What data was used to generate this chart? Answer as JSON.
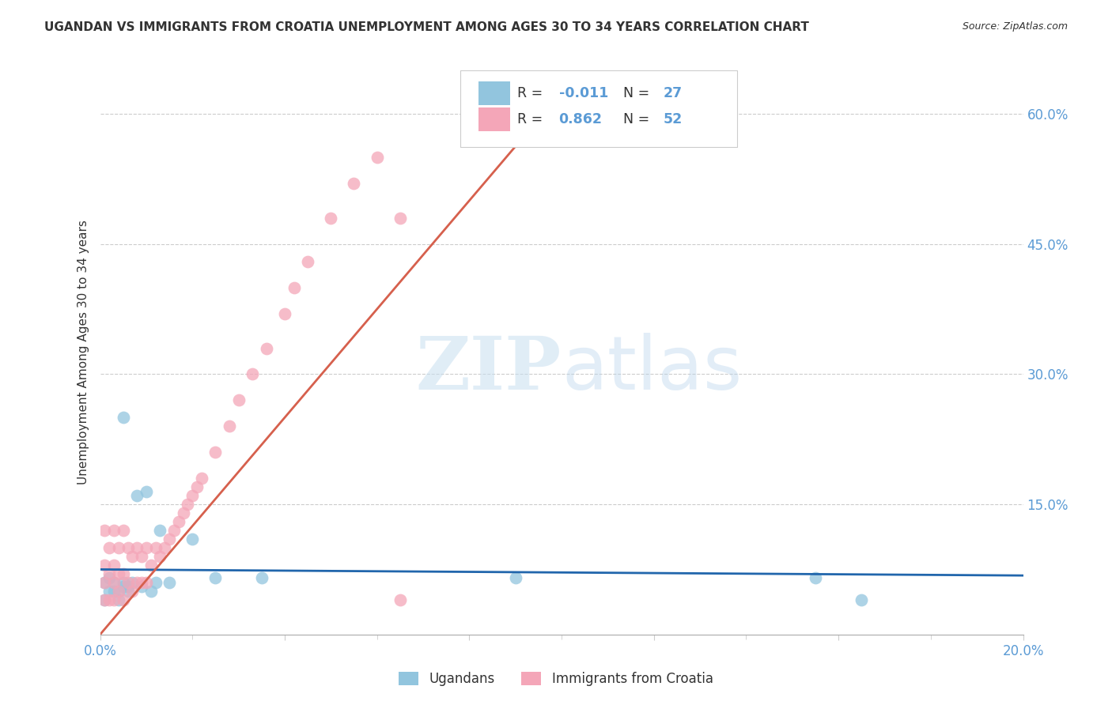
{
  "title": "UGANDAN VS IMMIGRANTS FROM CROATIA UNEMPLOYMENT AMONG AGES 30 TO 34 YEARS CORRELATION CHART",
  "source": "Source: ZipAtlas.com",
  "ylabel_label": "Unemployment Among Ages 30 to 34 years",
  "xlim": [
    0.0,
    0.2
  ],
  "ylim": [
    0.0,
    0.65
  ],
  "ugandan_R": -0.011,
  "ugandan_N": 27,
  "croatia_R": 0.862,
  "croatia_N": 52,
  "ugandan_color": "#92c5de",
  "croatia_color": "#f4a6b8",
  "ugandan_line_color": "#2166ac",
  "croatia_line_color": "#d6604d",
  "legend_label_ugandan": "Ugandans",
  "legend_label_croatia": "Immigrants from Croatia",
  "watermark_zip": "ZIP",
  "watermark_atlas": "atlas",
  "ugandan_points_x": [
    0.001,
    0.001,
    0.002,
    0.002,
    0.003,
    0.003,
    0.004,
    0.004,
    0.005,
    0.005,
    0.006,
    0.006,
    0.007,
    0.008,
    0.009,
    0.01,
    0.011,
    0.012,
    0.013,
    0.015,
    0.02,
    0.025,
    0.035,
    0.09,
    0.155,
    0.165,
    0.005
  ],
  "ugandan_points_y": [
    0.04,
    0.06,
    0.05,
    0.065,
    0.05,
    0.06,
    0.05,
    0.04,
    0.055,
    0.06,
    0.055,
    0.05,
    0.06,
    0.16,
    0.055,
    0.165,
    0.05,
    0.06,
    0.12,
    0.06,
    0.11,
    0.065,
    0.065,
    0.065,
    0.065,
    0.04,
    0.25
  ],
  "croatia_points_x": [
    0.001,
    0.001,
    0.001,
    0.001,
    0.002,
    0.002,
    0.002,
    0.003,
    0.003,
    0.003,
    0.003,
    0.004,
    0.004,
    0.004,
    0.005,
    0.005,
    0.005,
    0.006,
    0.006,
    0.007,
    0.007,
    0.008,
    0.008,
    0.009,
    0.009,
    0.01,
    0.01,
    0.011,
    0.012,
    0.013,
    0.014,
    0.015,
    0.016,
    0.017,
    0.018,
    0.019,
    0.02,
    0.021,
    0.022,
    0.025,
    0.028,
    0.03,
    0.033,
    0.036,
    0.04,
    0.042,
    0.045,
    0.05,
    0.055,
    0.06,
    0.065,
    0.065
  ],
  "croatia_points_y": [
    0.04,
    0.06,
    0.08,
    0.12,
    0.04,
    0.07,
    0.1,
    0.04,
    0.06,
    0.08,
    0.12,
    0.05,
    0.07,
    0.1,
    0.04,
    0.07,
    0.12,
    0.06,
    0.1,
    0.05,
    0.09,
    0.06,
    0.1,
    0.06,
    0.09,
    0.06,
    0.1,
    0.08,
    0.1,
    0.09,
    0.1,
    0.11,
    0.12,
    0.13,
    0.14,
    0.15,
    0.16,
    0.17,
    0.18,
    0.21,
    0.24,
    0.27,
    0.3,
    0.33,
    0.37,
    0.4,
    0.43,
    0.48,
    0.52,
    0.55,
    0.04,
    0.48
  ],
  "title_color": "#333333",
  "axis_color": "#5b9bd5",
  "grid_color": "#cccccc",
  "bg_color": "#ffffff",
  "ugandan_line_x": [
    0.0,
    0.2
  ],
  "ugandan_line_y": [
    0.075,
    0.068
  ],
  "croatia_line_x": [
    0.0,
    0.104
  ],
  "croatia_line_y": [
    0.0,
    0.65
  ]
}
